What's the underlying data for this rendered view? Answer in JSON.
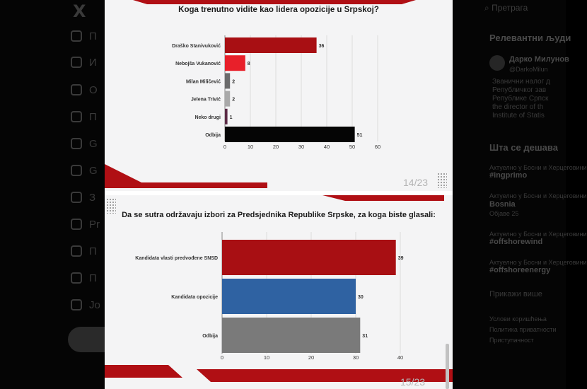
{
  "nav": {
    "logo": "X",
    "items": [
      {
        "label": "П",
        "icon": "home-icon"
      },
      {
        "label": "И",
        "icon": "search-icon"
      },
      {
        "label": "О",
        "icon": "bell-icon"
      },
      {
        "label": "П",
        "icon": "mail-icon"
      },
      {
        "label": "G",
        "icon": "grok-icon"
      },
      {
        "label": "G",
        "icon": "bookmark-icon"
      },
      {
        "label": "З",
        "icon": "communities-icon"
      },
      {
        "label": "Pr",
        "icon": "x-premium-icon"
      },
      {
        "label": "П",
        "icon": "verified-orgs-icon"
      },
      {
        "label": "П",
        "icon": "profile-icon"
      },
      {
        "label": "Jo",
        "icon": "more-icon"
      }
    ]
  },
  "sidebar": {
    "search_label": "Претрага",
    "relevant_heading": "Релевантни људи",
    "person": {
      "name": "Дарко Милунов",
      "handle": "@DarkoMilun",
      "bio": [
        "Званични налог д",
        "Републичког зав",
        "Републике Српск",
        "the director of th",
        "Institute of Statis"
      ]
    },
    "trends_heading": "Шта се дешава",
    "trends": [
      {
        "meta": "Актуелно у Босни и Херцеговини",
        "tag": "#ingprimo"
      },
      {
        "meta": "Актуелно у Босни и Херцеговини",
        "tag": "Bosnia",
        "sub": "Објаве 25"
      },
      {
        "meta": "Актуелно у Босни и Херцеговини",
        "tag": "#offshorewind"
      },
      {
        "meta": "Актуелно у Босни и Херцеговини",
        "tag": "#offshoreenergy"
      }
    ],
    "show_more": "Прикажи више",
    "footer": [
      "Услови коришћења",
      "Политика приватности",
      "Приступачност"
    ]
  },
  "slide1": {
    "title": "Koga trenutno vidite kao lidera opozicije u Srpskoj?",
    "page": "14/23"
  },
  "slide2": {
    "title": "Da se sutra održavaju izbori za Predsjednika Republike Srpske, za koga biste glasali:",
    "page": "15/23"
  },
  "chart_data": [
    {
      "type": "bar",
      "orientation": "horizontal",
      "title": "Koga trenutno vidite kao lidera opozicije u Srpskoj?",
      "categories": [
        "Draško Stanivuković",
        "Nebojša Vukanović",
        "Milan Miličević",
        "Jelena Trivić",
        "Neko drugi",
        "Odbija"
      ],
      "values": [
        36,
        8,
        2,
        2,
        1,
        51
      ],
      "colors": [
        "#a80f13",
        "#e8202a",
        "#6b6b6b",
        "#a9a9a9",
        "#5b2a45",
        "#050505"
      ],
      "xlim": [
        0,
        60
      ],
      "xticks": [
        0,
        10,
        20,
        30,
        40,
        50,
        60
      ],
      "grid": true
    },
    {
      "type": "bar",
      "orientation": "horizontal",
      "title": "Da se sutra održavaju izbori za Predsjednika Republike Srpske, za koga biste glasali:",
      "categories": [
        "Kandidata vlasti predvođene SNSD",
        "Kandidata opozicije",
        "Odbija"
      ],
      "values": [
        39,
        30,
        31
      ],
      "colors": [
        "#a80f13",
        "#2f62a2",
        "#7a7a7a"
      ],
      "xlim": [
        0,
        40
      ],
      "xticks": [
        0,
        10,
        20,
        30,
        40
      ],
      "grid": true
    }
  ]
}
